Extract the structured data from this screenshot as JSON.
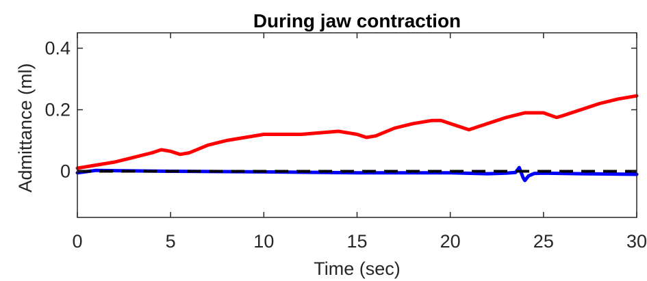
{
  "chart_data": {
    "type": "line",
    "title": "During jaw contraction",
    "xlabel": "Time (sec)",
    "ylabel": "Admittance (ml)",
    "xlim": [
      0,
      30
    ],
    "ylim": [
      -0.15,
      0.45
    ],
    "xticks": [
      0,
      5,
      10,
      15,
      20,
      25,
      30
    ],
    "xtick_labels": [
      "0",
      "5",
      "10",
      "15",
      "20",
      "25",
      "30"
    ],
    "yticks": [
      0,
      0.2,
      0.4
    ],
    "ytick_labels": [
      "0",
      "0.2",
      "0.4"
    ],
    "grid": false,
    "series": [
      {
        "color": "#ff0000",
        "style": "solid",
        "x": [
          0,
          1,
          2,
          3,
          4,
          4.5,
          5,
          5.5,
          6,
          7,
          8,
          9,
          10,
          11,
          12,
          13,
          14,
          15,
          15.5,
          16,
          17,
          18,
          19,
          19.5,
          20,
          21,
          22,
          23,
          24,
          25,
          25.7,
          26,
          27,
          28,
          29,
          30
        ],
        "values": [
          0.01,
          0.02,
          0.03,
          0.045,
          0.06,
          0.07,
          0.065,
          0.055,
          0.06,
          0.085,
          0.1,
          0.11,
          0.12,
          0.12,
          0.12,
          0.125,
          0.13,
          0.12,
          0.11,
          0.115,
          0.14,
          0.155,
          0.165,
          0.165,
          0.155,
          0.135,
          0.155,
          0.175,
          0.19,
          0.19,
          0.175,
          0.18,
          0.2,
          0.22,
          0.235,
          0.245
        ]
      },
      {
        "color": "#0000ff",
        "style": "solid",
        "x": [
          0,
          1,
          2,
          5,
          10,
          15,
          20,
          22,
          23,
          23.5,
          23.7,
          23.9,
          24,
          24.2,
          24.5,
          25,
          27,
          30
        ],
        "values": [
          -0.005,
          0.003,
          0.002,
          0.0,
          -0.002,
          -0.005,
          -0.005,
          -0.008,
          -0.006,
          -0.004,
          0.012,
          -0.02,
          -0.03,
          -0.015,
          -0.007,
          -0.006,
          -0.008,
          -0.01
        ]
      },
      {
        "color": "#000000",
        "style": "dashed",
        "x": [
          0,
          30
        ],
        "values": [
          0,
          0
        ]
      }
    ]
  }
}
